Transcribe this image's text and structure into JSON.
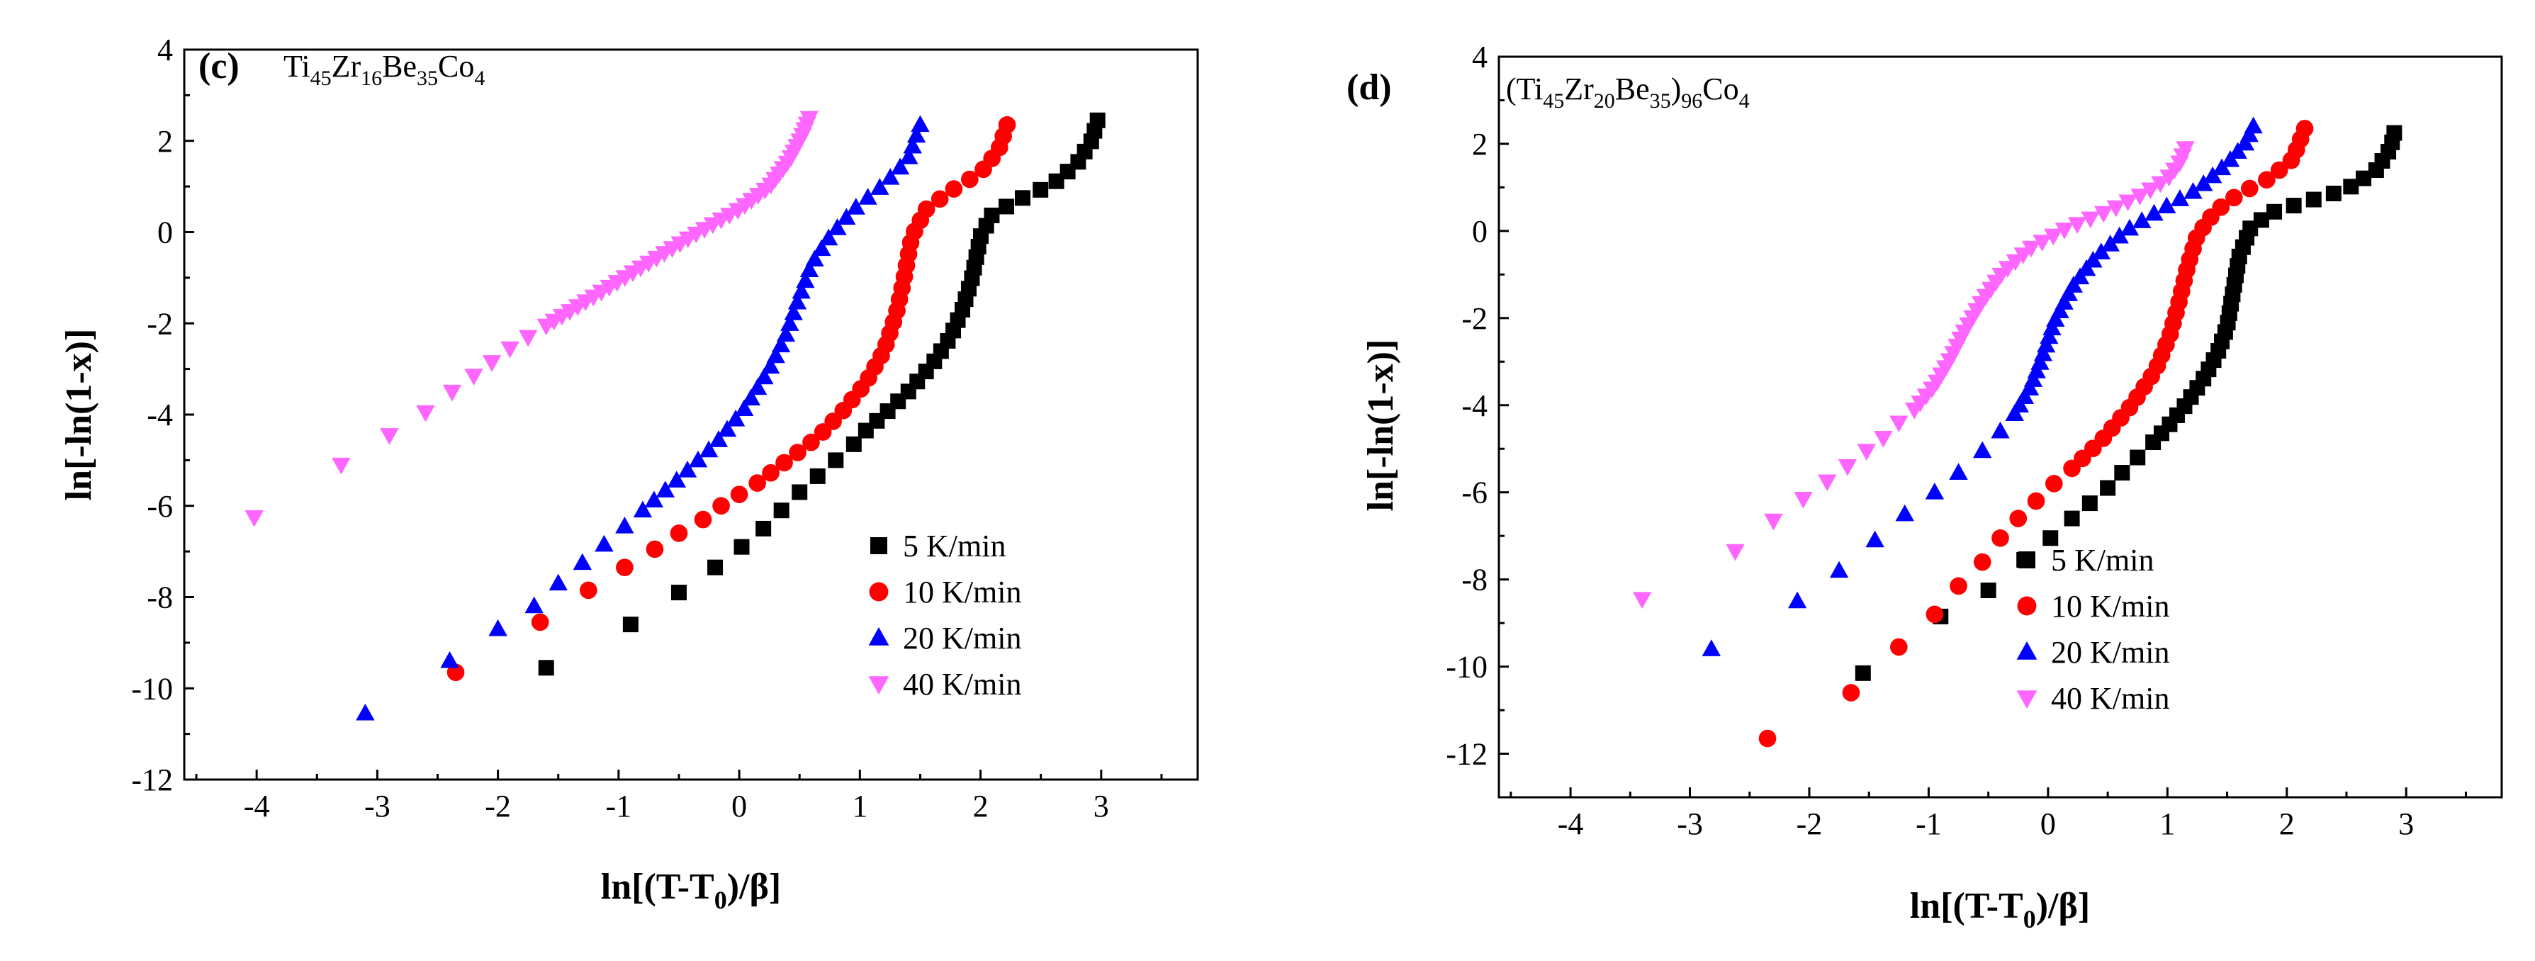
{
  "figure_panels": [
    "(c)",
    "(d)"
  ],
  "chart_data": [
    {
      "type": "scatter",
      "panel_label": "(c)",
      "composition": {
        "base": "Ti",
        "s1": "45",
        "el2": "Zr",
        "s2": "16",
        "el3": "Be",
        "s3": "35",
        "el4": "Co",
        "s4": "4",
        "text": "Ti45Zr16Be35Co4"
      },
      "xlabel": "ln[(T-T0)/β]",
      "xlabel_parts": {
        "a": "ln[(T-T",
        "sub": "0",
        "b": ")/β]"
      },
      "ylabel": "ln[-ln(1-x)]",
      "xlim": [
        -4.6,
        3.8
      ],
      "ylim": [
        -12,
        4
      ],
      "xticks": [
        "-4",
        "-3",
        "-2",
        "-1",
        "0",
        "1",
        "2",
        "3"
      ],
      "yticks": [
        "-12",
        "-10",
        "-8",
        "-6",
        "-4",
        "-2",
        "0",
        "2",
        "4"
      ],
      "legend_position": "bottom-right",
      "series": [
        {
          "name": "5 K/min",
          "marker": "square",
          "color": "#000000",
          "sparse": [
            [
              -1.6,
              -9.55
            ],
            [
              -0.9,
              -8.6
            ],
            [
              -0.5,
              -7.9
            ],
            [
              -0.2,
              -7.35
            ],
            [
              0.02,
              -6.9
            ],
            [
              0.2,
              -6.5
            ],
            [
              0.35,
              -6.1
            ],
            [
              0.5,
              -5.7
            ],
            [
              0.65,
              -5.35
            ],
            [
              0.8,
              -5.0
            ],
            [
              0.95,
              -4.65
            ],
            [
              1.05,
              -4.35
            ]
          ],
          "curve": [
            [
              1.05,
              -4.35
            ],
            [
              1.2,
              -4.0
            ],
            [
              1.4,
              -3.5
            ],
            [
              1.6,
              -2.9
            ],
            [
              1.75,
              -2.3
            ],
            [
              1.85,
              -1.7
            ],
            [
              1.93,
              -1.0
            ],
            [
              2.0,
              -0.1
            ],
            [
              2.1,
              0.4
            ],
            [
              2.35,
              0.75
            ],
            [
              2.6,
              1.05
            ],
            [
              2.8,
              1.5
            ],
            [
              2.92,
              2.0
            ],
            [
              2.97,
              2.45
            ]
          ],
          "curve_count": 32
        },
        {
          "name": "10 K/min",
          "marker": "circle",
          "color": "#ff0000",
          "sparse": [
            [
              -2.35,
              -9.65
            ],
            [
              -1.65,
              -8.55
            ],
            [
              -1.25,
              -7.85
            ],
            [
              -0.95,
              -7.35
            ],
            [
              -0.7,
              -6.95
            ],
            [
              -0.5,
              -6.6
            ],
            [
              -0.3,
              -6.3
            ],
            [
              -0.15,
              -6.0
            ],
            [
              0.0,
              -5.75
            ],
            [
              0.15,
              -5.5
            ]
          ],
          "curve": [
            [
              0.15,
              -5.5
            ],
            [
              0.4,
              -5.0
            ],
            [
              0.65,
              -4.5
            ],
            [
              0.85,
              -3.95
            ],
            [
              1.05,
              -3.3
            ],
            [
              1.2,
              -2.6
            ],
            [
              1.3,
              -1.8
            ],
            [
              1.36,
              -1.1
            ],
            [
              1.43,
              -0.1
            ],
            [
              1.55,
              0.5
            ],
            [
              1.75,
              0.9
            ],
            [
              2.0,
              1.3
            ],
            [
              2.15,
              1.8
            ],
            [
              2.22,
              2.35
            ]
          ],
          "curve_count": 34
        },
        {
          "name": "20 K/min",
          "marker": "triangle-up",
          "color": "#0000ff",
          "sparse": [
            [
              -3.1,
              -10.55
            ],
            [
              -2.4,
              -9.4
            ],
            [
              -2.0,
              -8.7
            ],
            [
              -1.7,
              -8.2
            ],
            [
              -1.5,
              -7.7
            ],
            [
              -1.3,
              -7.25
            ],
            [
              -1.12,
              -6.85
            ],
            [
              -0.95,
              -6.45
            ],
            [
              -0.8,
              -6.1
            ]
          ],
          "curve": [
            [
              -0.8,
              -6.1
            ],
            [
              -0.5,
              -5.4
            ],
            [
              -0.2,
              -4.65
            ],
            [
              0.05,
              -3.85
            ],
            [
              0.25,
              -3.0
            ],
            [
              0.38,
              -2.3
            ],
            [
              0.48,
              -1.55
            ],
            [
              0.6,
              -0.7
            ],
            [
              0.75,
              -0.1
            ],
            [
              0.95,
              0.5
            ],
            [
              1.2,
              1.05
            ],
            [
              1.4,
              1.6
            ],
            [
              1.5,
              2.35
            ]
          ],
          "curve_count": 38
        },
        {
          "name": "40 K/min",
          "marker": "triangle-down",
          "color": "#ff66ff",
          "sparse": [
            [
              -4.02,
              -6.25
            ],
            [
              -3.3,
              -5.1
            ],
            [
              -2.9,
              -4.45
            ],
            [
              -2.6,
              -3.95
            ],
            [
              -2.38,
              -3.5
            ],
            [
              -2.2,
              -3.15
            ],
            [
              -2.05,
              -2.85
            ],
            [
              -1.9,
              -2.55
            ],
            [
              -1.75,
              -2.3
            ],
            [
              -1.6,
              -2.05
            ]
          ],
          "curve": [
            [
              -1.6,
              -2.05
            ],
            [
              -1.2,
              -1.4
            ],
            [
              -0.8,
              -0.75
            ],
            [
              -0.4,
              -0.1
            ],
            [
              0.0,
              0.5
            ],
            [
              0.25,
              1.0
            ],
            [
              0.42,
              1.6
            ],
            [
              0.52,
              2.1
            ],
            [
              0.58,
              2.5
            ]
          ],
          "curve_count": 42
        }
      ]
    },
    {
      "type": "scatter",
      "panel_label": "(d)",
      "composition": {
        "base": "(Ti",
        "s1": "45",
        "el2": "Zr",
        "s2": "20",
        "el3": "Be",
        "s3": "35",
        "el4": ")",
        "s4": "96",
        "el5": "Co",
        "s5": "4",
        "text": "(Ti45Zr20Be35)96Co4"
      },
      "xlabel": "ln[(T-T0)/β]",
      "xlabel_parts": {
        "a": "ln[(T-T",
        "sub": "0",
        "b": ")/β]"
      },
      "ylabel": "ln[-ln(1-x)]",
      "xlim": [
        -4.6,
        3.8
      ],
      "ylim": [
        -13,
        4
      ],
      "xticks": [
        "-4",
        "-3",
        "-2",
        "-1",
        "0",
        "1",
        "2",
        "3"
      ],
      "yticks": [
        "-12",
        "-10",
        "-8",
        "-6",
        "-4",
        "-2",
        "0",
        "2",
        "4"
      ],
      "legend_position": "bottom-right",
      "series": [
        {
          "name": "5 K/min",
          "marker": "square",
          "color": "#000000",
          "sparse": [
            [
              -1.55,
              -10.15
            ],
            [
              -0.9,
              -8.85
            ],
            [
              -0.5,
              -8.25
            ],
            [
              -0.2,
              -7.55
            ],
            [
              0.02,
              -7.05
            ],
            [
              0.2,
              -6.6
            ],
            [
              0.35,
              -6.25
            ],
            [
              0.5,
              -5.9
            ],
            [
              0.62,
              -5.55
            ],
            [
              0.75,
              -5.2
            ],
            [
              0.88,
              -4.85
            ]
          ],
          "curve": [
            [
              0.88,
              -4.85
            ],
            [
              1.0,
              -4.5
            ],
            [
              1.15,
              -4.0
            ],
            [
              1.3,
              -3.4
            ],
            [
              1.42,
              -2.8
            ],
            [
              1.5,
              -2.2
            ],
            [
              1.55,
              -1.4
            ],
            [
              1.6,
              -0.6
            ],
            [
              1.7,
              0.1
            ],
            [
              1.9,
              0.45
            ],
            [
              2.2,
              0.7
            ],
            [
              2.5,
              0.95
            ],
            [
              2.75,
              1.4
            ],
            [
              2.87,
              1.9
            ],
            [
              2.9,
              2.25
            ]
          ],
          "curve_count": 36
        },
        {
          "name": "10 K/min",
          "marker": "circle",
          "color": "#ff0000",
          "sparse": [
            [
              -2.35,
              -11.65
            ],
            [
              -1.65,
              -10.6
            ],
            [
              -1.25,
              -9.55
            ],
            [
              -0.95,
              -8.8
            ],
            [
              -0.75,
              -8.15
            ],
            [
              -0.55,
              -7.6
            ],
            [
              -0.4,
              -7.05
            ],
            [
              -0.25,
              -6.6
            ],
            [
              -0.1,
              -6.2
            ],
            [
              0.05,
              -5.8
            ],
            [
              0.2,
              -5.45
            ]
          ],
          "curve": [
            [
              0.2,
              -5.45
            ],
            [
              0.45,
              -4.8
            ],
            [
              0.7,
              -4.0
            ],
            [
              0.9,
              -3.2
            ],
            [
              1.02,
              -2.4
            ],
            [
              1.1,
              -1.6
            ],
            [
              1.17,
              -0.8
            ],
            [
              1.25,
              -0.1
            ],
            [
              1.4,
              0.45
            ],
            [
              1.6,
              0.85
            ],
            [
              1.85,
              1.2
            ],
            [
              2.05,
              1.65
            ],
            [
              2.15,
              2.35
            ]
          ],
          "curve_count": 34
        },
        {
          "name": "20 K/min",
          "marker": "triangle-up",
          "color": "#0000ff",
          "sparse": [
            [
              -2.82,
              -9.6
            ],
            [
              -2.1,
              -8.5
            ],
            [
              -1.75,
              -7.8
            ],
            [
              -1.45,
              -7.1
            ],
            [
              -1.2,
              -6.5
            ],
            [
              -0.95,
              -6.0
            ],
            [
              -0.75,
              -5.55
            ],
            [
              -0.55,
              -5.05
            ],
            [
              -0.4,
              -4.6
            ],
            [
              -0.28,
              -4.2
            ]
          ],
          "curve": [
            [
              -0.28,
              -4.2
            ],
            [
              -0.15,
              -3.6
            ],
            [
              -0.05,
              -2.9
            ],
            [
              0.05,
              -2.1
            ],
            [
              0.2,
              -1.3
            ],
            [
              0.4,
              -0.6
            ],
            [
              0.65,
              0.0
            ],
            [
              0.95,
              0.5
            ],
            [
              1.25,
              0.95
            ],
            [
              1.5,
              1.55
            ],
            [
              1.65,
              2.0
            ],
            [
              1.72,
              2.4
            ]
          ],
          "curve_count": 36
        },
        {
          "name": "40 K/min",
          "marker": "triangle-down",
          "color": "#ff66ff",
          "sparse": [
            [
              -3.4,
              -8.45
            ],
            [
              -2.62,
              -7.35
            ],
            [
              -2.3,
              -6.65
            ],
            [
              -2.05,
              -6.15
            ],
            [
              -1.85,
              -5.75
            ],
            [
              -1.68,
              -5.4
            ],
            [
              -1.52,
              -5.05
            ],
            [
              -1.38,
              -4.75
            ],
            [
              -1.25,
              -4.4
            ],
            [
              -1.12,
              -4.1
            ]
          ],
          "curve": [
            [
              -1.12,
              -4.1
            ],
            [
              -0.95,
              -3.55
            ],
            [
              -0.82,
              -2.95
            ],
            [
              -0.7,
              -2.3
            ],
            [
              -0.55,
              -1.6
            ],
            [
              -0.38,
              -0.95
            ],
            [
              -0.15,
              -0.4
            ],
            [
              0.15,
              0.05
            ],
            [
              0.5,
              0.45
            ],
            [
              0.8,
              0.85
            ],
            [
              1.0,
              1.2
            ],
            [
              1.1,
              1.55
            ],
            [
              1.15,
              1.9
            ]
          ],
          "curve_count": 40
        }
      ]
    }
  ]
}
